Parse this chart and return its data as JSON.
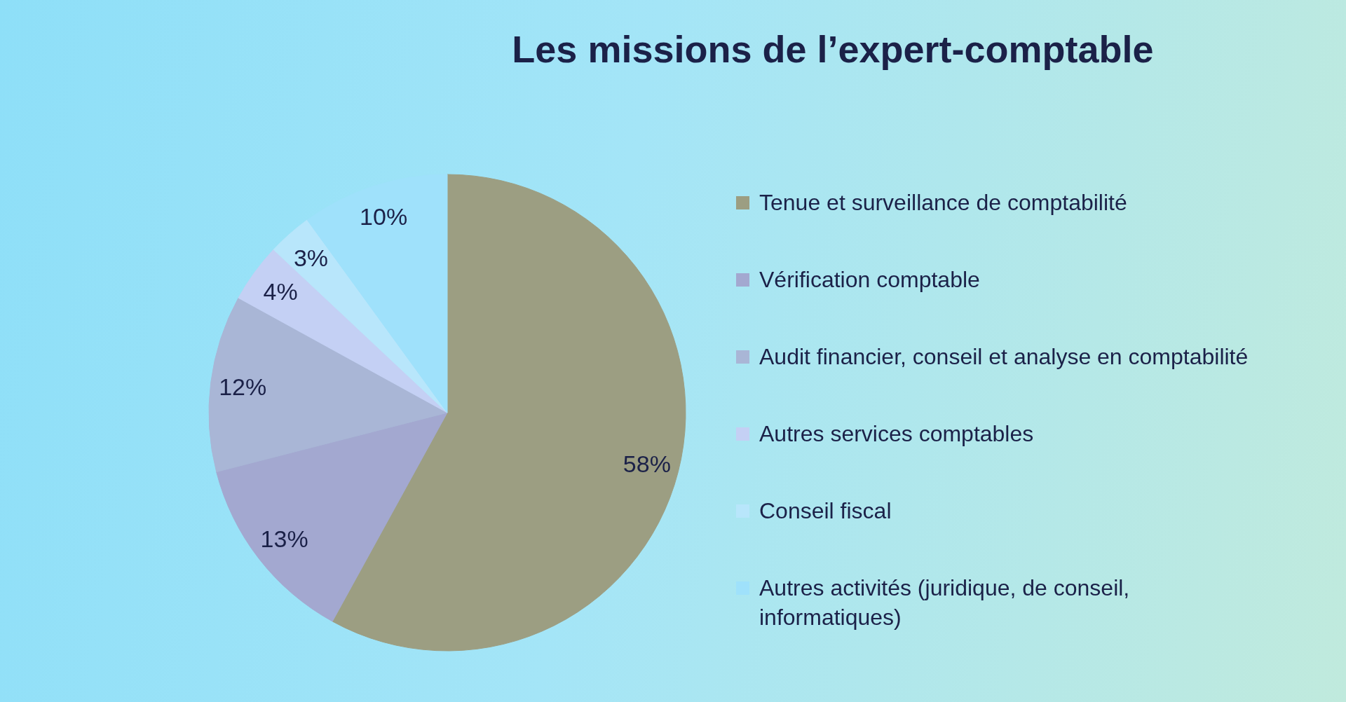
{
  "chart_data": {
    "type": "pie",
    "title": "Les missions de l’expert-comptable",
    "categories": [
      "Tenue et surveillance de comptabilité",
      "Vérification comptable",
      "Audit financier, conseil et analyse en comptabilité",
      "Autres services comptables",
      "Conseil fiscal",
      "Autres activités (juridique, de conseil, informatiques)"
    ],
    "values": [
      58,
      13,
      12,
      4,
      3,
      10
    ],
    "colors": [
      "#9c9e82",
      "#a3a8d0",
      "#a9b6d6",
      "#c4d0f4",
      "#b8e6fb",
      "#9fe1fb"
    ],
    "value_labels": [
      "58%",
      "13%",
      "12%",
      "4%",
      "3%",
      "10%"
    ],
    "legend": "right"
  }
}
